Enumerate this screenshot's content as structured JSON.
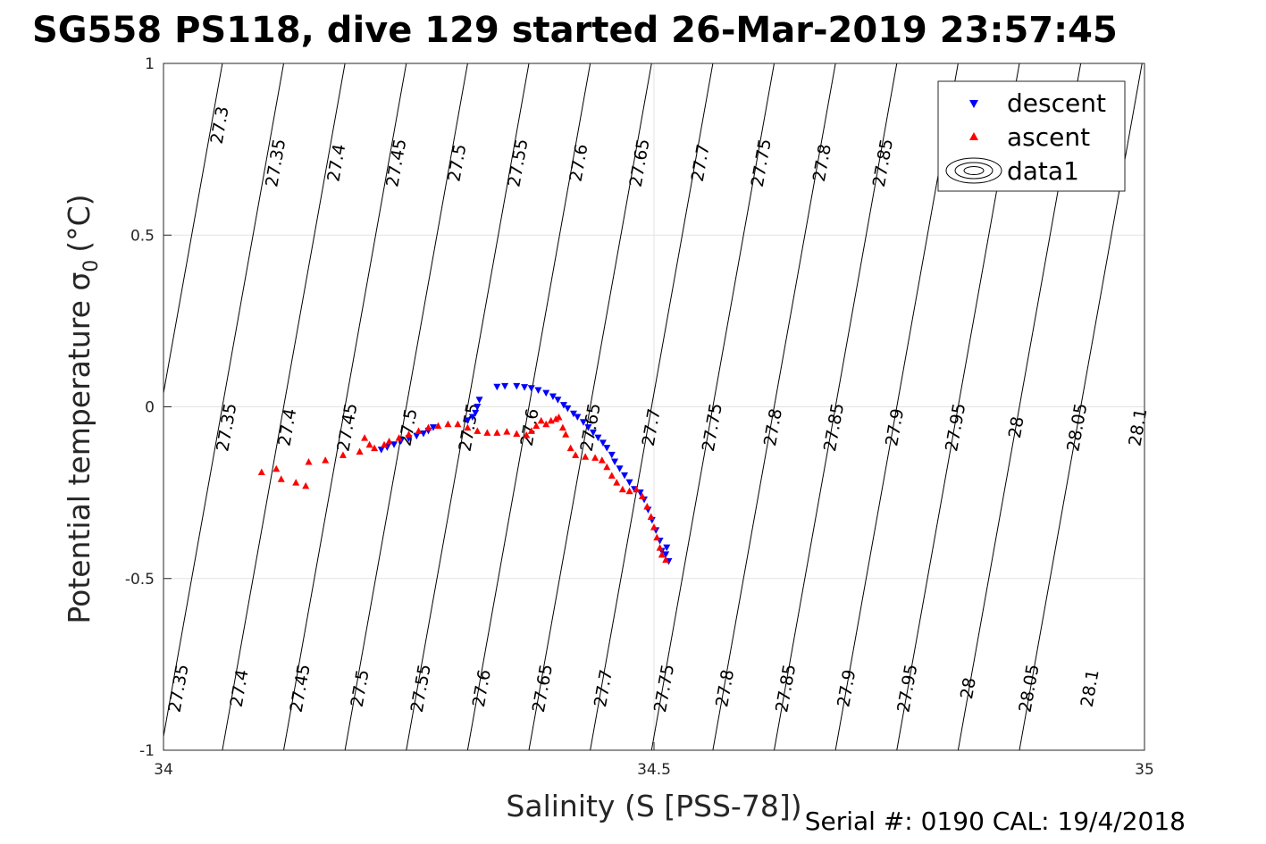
{
  "chart_data": {
    "type": "scatter",
    "title": "SG558 PS118, dive 129 started 26-Mar-2019 23:57:45",
    "xlabel": "Salinity (S [PSS-78])",
    "ylabel": "Potential temperature σ",
    "ylabel_subscript": "0",
    "ylabel_unit": "(°C)",
    "xlim": [
      34,
      35
    ],
    "ylim": [
      -1,
      1
    ],
    "xticks": [
      "34",
      "34.5",
      "35"
    ],
    "yticks": [
      "1",
      "0.5",
      "0",
      "-0.5",
      "-1"
    ],
    "grid": true,
    "legend": {
      "position": "top-right",
      "entries": [
        "descent",
        "ascent",
        "data1"
      ]
    },
    "footer": "Serial #: 0190  CAL: 19/4/2018",
    "colors": {
      "descent": "#0000ff",
      "ascent": "#ff0000",
      "contours": "#000000",
      "grid": "#e3e3e3"
    },
    "isopycnals": {
      "levels": [
        27.3,
        27.35,
        27.4,
        27.45,
        27.5,
        27.55,
        27.6,
        27.65,
        27.7,
        27.75,
        27.8,
        27.85,
        27.9,
        27.95,
        28.0,
        28.05,
        28.1
      ],
      "labels_top": [
        {
          "text": "27.3",
          "x": 34.058,
          "y": 0.82
        },
        {
          "text": "27.35",
          "x": 34.115,
          "y": 0.71
        },
        {
          "text": "27.4",
          "x": 34.177,
          "y": 0.71
        },
        {
          "text": "27.45",
          "x": 34.238,
          "y": 0.71
        },
        {
          "text": "27.5",
          "x": 34.3,
          "y": 0.71
        },
        {
          "text": "27.55",
          "x": 34.362,
          "y": 0.71
        },
        {
          "text": "27.6",
          "x": 34.424,
          "y": 0.71
        },
        {
          "text": "27.65",
          "x": 34.486,
          "y": 0.71
        },
        {
          "text": "27.7",
          "x": 34.548,
          "y": 0.71
        },
        {
          "text": "27.75",
          "x": 34.61,
          "y": 0.71
        },
        {
          "text": "27.8",
          "x": 34.672,
          "y": 0.71
        },
        {
          "text": "27.85",
          "x": 34.734,
          "y": 0.71
        }
      ],
      "labels_mid": [
        {
          "text": "27.35",
          "x": 34.065,
          "y": -0.06
        },
        {
          "text": "27.4",
          "x": 34.127,
          "y": -0.06
        },
        {
          "text": "27.45",
          "x": 34.188,
          "y": -0.06
        },
        {
          "text": "27.5",
          "x": 34.25,
          "y": -0.06
        },
        {
          "text": "27.55",
          "x": 34.312,
          "y": -0.06
        },
        {
          "text": "27.6",
          "x": 34.374,
          "y": -0.06
        },
        {
          "text": "27.65",
          "x": 34.436,
          "y": -0.06
        },
        {
          "text": "27.7",
          "x": 34.498,
          "y": -0.06
        },
        {
          "text": "27.75",
          "x": 34.56,
          "y": -0.06
        },
        {
          "text": "27.8",
          "x": 34.622,
          "y": -0.06
        },
        {
          "text": "27.85",
          "x": 34.684,
          "y": -0.06
        },
        {
          "text": "27.9",
          "x": 34.746,
          "y": -0.06
        },
        {
          "text": "27.95",
          "x": 34.808,
          "y": -0.06
        },
        {
          "text": "28",
          "x": 34.87,
          "y": -0.06
        },
        {
          "text": "28.05",
          "x": 34.932,
          "y": -0.06
        },
        {
          "text": "28.1",
          "x": 34.994,
          "y": -0.06
        }
      ],
      "labels_bottom": [
        {
          "text": "27.35",
          "x": 34.016,
          "y": -0.82
        },
        {
          "text": "27.4",
          "x": 34.078,
          "y": -0.82
        },
        {
          "text": "27.45",
          "x": 34.14,
          "y": -0.82
        },
        {
          "text": "27.5",
          "x": 34.201,
          "y": -0.82
        },
        {
          "text": "27.55",
          "x": 34.263,
          "y": -0.82
        },
        {
          "text": "27.6",
          "x": 34.325,
          "y": -0.82
        },
        {
          "text": "27.65",
          "x": 34.387,
          "y": -0.82
        },
        {
          "text": "27.7",
          "x": 34.449,
          "y": -0.82
        },
        {
          "text": "27.75",
          "x": 34.511,
          "y": -0.82
        },
        {
          "text": "27.8",
          "x": 34.573,
          "y": -0.82
        },
        {
          "text": "27.85",
          "x": 34.635,
          "y": -0.82
        },
        {
          "text": "27.9",
          "x": 34.697,
          "y": -0.82
        },
        {
          "text": "27.95",
          "x": 34.759,
          "y": -0.82
        },
        {
          "text": "28",
          "x": 34.821,
          "y": -0.82
        },
        {
          "text": "28.05",
          "x": 34.883,
          "y": -0.82
        },
        {
          "text": "28.1",
          "x": 34.945,
          "y": -0.82
        }
      ]
    },
    "series": [
      {
        "name": "descent",
        "marker": "triangle-down",
        "points": [
          [
            34.222,
            -0.125
          ],
          [
            34.228,
            -0.118
          ],
          [
            34.235,
            -0.11
          ],
          [
            34.242,
            -0.1
          ],
          [
            34.25,
            -0.092
          ],
          [
            34.258,
            -0.085
          ],
          [
            34.265,
            -0.078
          ],
          [
            34.27,
            -0.07
          ],
          [
            34.275,
            -0.06
          ],
          [
            34.31,
            -0.04
          ],
          [
            34.315,
            -0.03
          ],
          [
            34.318,
            -0.018
          ],
          [
            34.32,
            0.0
          ],
          [
            34.322,
            0.02
          ],
          [
            34.34,
            0.058
          ],
          [
            34.348,
            0.06
          ],
          [
            34.36,
            0.06
          ],
          [
            34.368,
            0.057
          ],
          [
            34.375,
            0.054
          ],
          [
            34.382,
            0.048
          ],
          [
            34.39,
            0.04
          ],
          [
            34.397,
            0.03
          ],
          [
            34.402,
            0.02
          ],
          [
            34.408,
            0.005
          ],
          [
            34.412,
            -0.005
          ],
          [
            34.418,
            -0.02
          ],
          [
            34.422,
            -0.03
          ],
          [
            34.428,
            -0.045
          ],
          [
            34.433,
            -0.06
          ],
          [
            34.438,
            -0.075
          ],
          [
            34.443,
            -0.09
          ],
          [
            34.448,
            -0.105
          ],
          [
            34.452,
            -0.12
          ],
          [
            34.457,
            -0.14
          ],
          [
            34.46,
            -0.16
          ],
          [
            34.465,
            -0.18
          ],
          [
            34.47,
            -0.2
          ],
          [
            34.475,
            -0.22
          ],
          [
            34.48,
            -0.24
          ],
          [
            34.486,
            -0.25
          ],
          [
            34.49,
            -0.27
          ],
          [
            34.494,
            -0.3
          ],
          [
            34.498,
            -0.33
          ],
          [
            34.502,
            -0.36
          ],
          [
            34.506,
            -0.39
          ],
          [
            34.508,
            -0.42
          ],
          [
            34.512,
            -0.43
          ],
          [
            34.515,
            -0.45
          ],
          [
            34.513,
            -0.41
          ]
        ]
      },
      {
        "name": "ascent",
        "marker": "triangle-up",
        "points": [
          [
            34.1,
            -0.19
          ],
          [
            34.115,
            -0.18
          ],
          [
            34.12,
            -0.21
          ],
          [
            34.135,
            -0.22
          ],
          [
            34.145,
            -0.23
          ],
          [
            34.148,
            -0.16
          ],
          [
            34.165,
            -0.155
          ],
          [
            34.183,
            -0.14
          ],
          [
            34.2,
            -0.13
          ],
          [
            34.205,
            -0.09
          ],
          [
            34.21,
            -0.11
          ],
          [
            34.215,
            -0.12
          ],
          [
            34.225,
            -0.11
          ],
          [
            34.23,
            -0.1
          ],
          [
            34.24,
            -0.09
          ],
          [
            34.25,
            -0.08
          ],
          [
            34.26,
            -0.07
          ],
          [
            34.27,
            -0.06
          ],
          [
            34.28,
            -0.055
          ],
          [
            34.29,
            -0.05
          ],
          [
            34.3,
            -0.05
          ],
          [
            34.31,
            -0.06
          ],
          [
            34.32,
            -0.07
          ],
          [
            34.33,
            -0.075
          ],
          [
            34.34,
            -0.075
          ],
          [
            34.35,
            -0.072
          ],
          [
            34.36,
            -0.078
          ],
          [
            34.37,
            -0.082
          ],
          [
            34.375,
            -0.07
          ],
          [
            34.38,
            -0.055
          ],
          [
            34.385,
            -0.04
          ],
          [
            34.39,
            -0.05
          ],
          [
            34.395,
            -0.04
          ],
          [
            34.4,
            -0.035
          ],
          [
            34.403,
            -0.03
          ],
          [
            34.407,
            -0.06
          ],
          [
            34.41,
            -0.08
          ],
          [
            34.415,
            -0.12
          ],
          [
            34.42,
            -0.14
          ],
          [
            34.43,
            -0.145
          ],
          [
            34.44,
            -0.148
          ],
          [
            34.447,
            -0.155
          ],
          [
            34.452,
            -0.175
          ],
          [
            34.457,
            -0.2
          ],
          [
            34.462,
            -0.22
          ],
          [
            34.468,
            -0.24
          ],
          [
            34.475,
            -0.245
          ],
          [
            34.482,
            -0.24
          ],
          [
            34.488,
            -0.26
          ],
          [
            34.493,
            -0.29
          ],
          [
            34.497,
            -0.32
          ],
          [
            34.5,
            -0.35
          ],
          [
            34.503,
            -0.38
          ],
          [
            34.506,
            -0.41
          ],
          [
            34.508,
            -0.43
          ],
          [
            34.512,
            -0.445
          ]
        ]
      }
    ]
  }
}
